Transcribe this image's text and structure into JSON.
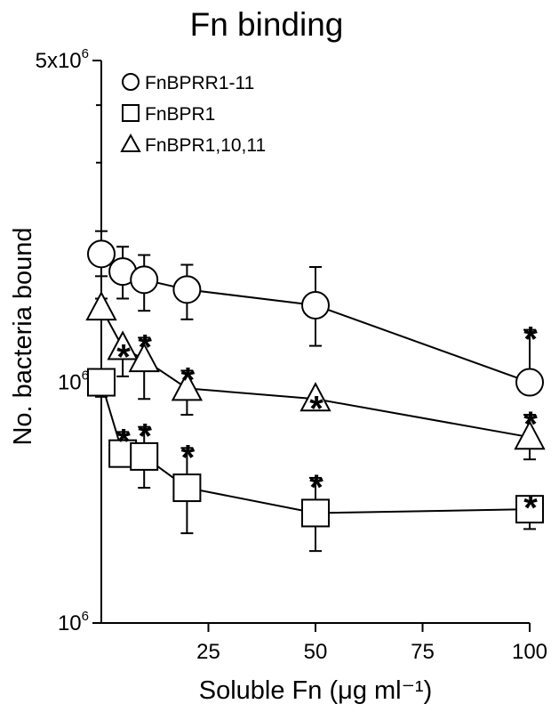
{
  "chart_data": {
    "type": "scatter",
    "title": "Fn binding",
    "xlabel": "Soluble Fn (μg ml⁻¹)",
    "ylabel": "No. bacteria bound",
    "x_ticks": [
      25,
      50,
      75,
      100
    ],
    "xlim": [
      0,
      100
    ],
    "y_scale": "log",
    "ylim": [
      300000,
      5000000
    ],
    "y_tick_labels": [
      {
        "value": 5000000,
        "mantissa": "5x10",
        "exp": "6"
      },
      {
        "value": 1000000,
        "mantissa": "10",
        "exp": "6"
      },
      {
        "value": 300000,
        "mantissa": "10",
        "exp": "6"
      }
    ],
    "legend_position": "top-left",
    "significance_marker": "*",
    "series": [
      {
        "name": "FnBPRR1-11",
        "marker": "circle",
        "x": [
          0,
          5,
          10,
          20,
          50,
          100
        ],
        "y": [
          1900000,
          1740000,
          1670000,
          1590000,
          1470000,
          1000000
        ],
        "err_upper": [
          2130000,
          1970000,
          1890000,
          1800000,
          1780000,
          1300000
        ],
        "err_lower": [
          1700000,
          1520000,
          1430000,
          1370000,
          1200000,
          1000000
        ],
        "significant": [
          false,
          false,
          false,
          false,
          false,
          true
        ]
      },
      {
        "name": "FnBPR1",
        "marker": "square",
        "x": [
          0,
          5,
          10,
          20,
          50,
          100
        ],
        "y": [
          1000000,
          700000,
          690000,
          590000,
          520000,
          530000
        ],
        "err_upper": [
          1000000,
          780000,
          800000,
          720000,
          620000,
          560000
        ],
        "err_lower": [
          930000,
          660000,
          590000,
          470000,
          430000,
          480000
        ],
        "significant": [
          false,
          true,
          true,
          true,
          true,
          true
        ]
      },
      {
        "name": "FnBPR1,10,11",
        "marker": "triangle",
        "x": [
          0,
          5,
          10,
          20,
          50,
          100
        ],
        "y": [
          1450000,
          1190000,
          1120000,
          970000,
          920000,
          760000
        ],
        "err_upper": [
          1520000,
          1190000,
          1250000,
          1060000,
          920000,
          850000
        ],
        "err_lower": [
          1390000,
          1030000,
          920000,
          850000,
          880000,
          680000
        ],
        "significant": [
          false,
          true,
          true,
          true,
          true,
          true
        ]
      }
    ]
  }
}
